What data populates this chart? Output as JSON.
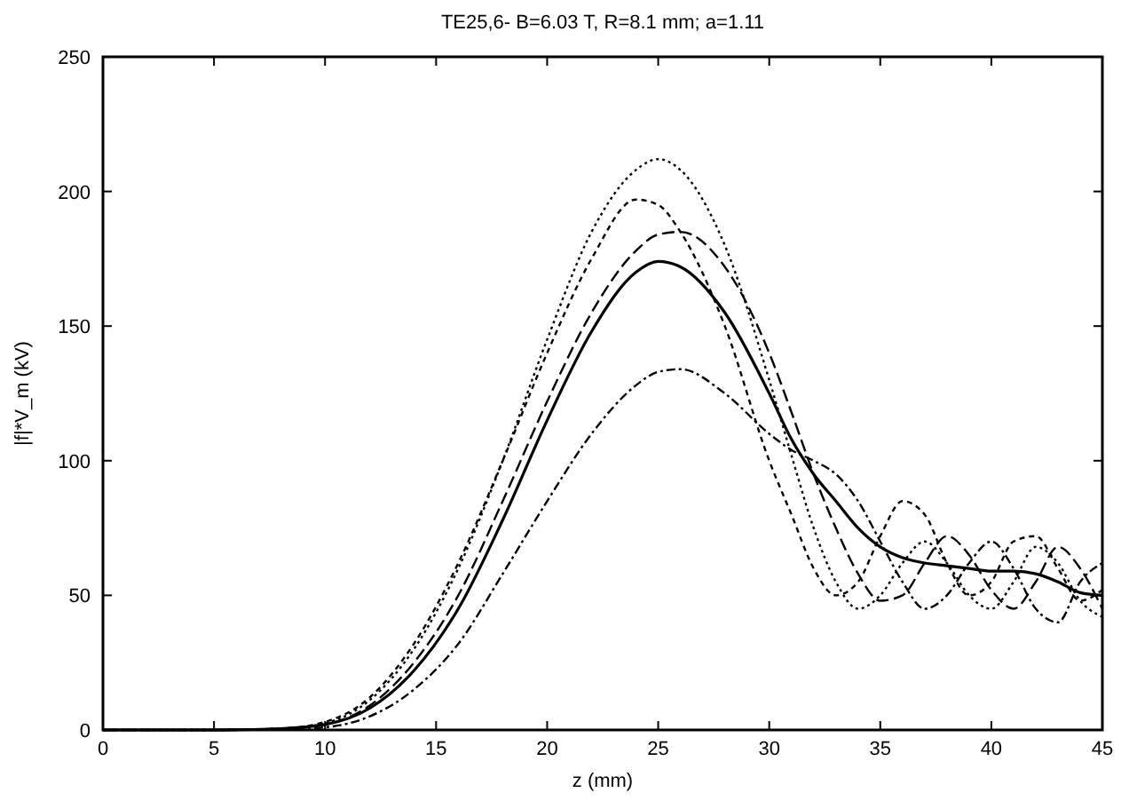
{
  "chart_data": {
    "type": "line",
    "title": "TE25,6- B=6.03 T, R=8.1 mm; a=1.11",
    "xlabel": "z (mm)",
    "ylabel": "|f|*V_m (kV)",
    "x": [
      0,
      5,
      8,
      10,
      12,
      14,
      16,
      18,
      20,
      22,
      24,
      25,
      26,
      28,
      30,
      31,
      32,
      33,
      34,
      35,
      36,
      37,
      38,
      39,
      40,
      41,
      42,
      43,
      44,
      45
    ],
    "xlim": [
      0,
      45
    ],
    "xticks": [
      0,
      5,
      10,
      15,
      20,
      25,
      30,
      35,
      40,
      45
    ],
    "ylim": [
      0,
      250
    ],
    "yticks": [
      0,
      50,
      100,
      150,
      200,
      250
    ],
    "grid": false,
    "series": [
      {
        "color": "#000000",
        "line_style": "solid",
        "values": [
          0,
          0,
          0.5,
          2,
          8,
          22,
          45,
          78,
          115,
          148,
          170,
          174,
          172,
          155,
          125,
          108,
          95,
          85,
          75,
          68,
          64,
          62,
          61,
          60,
          59,
          59,
          58,
          55,
          51,
          50
        ]
      },
      {
        "color": "#000000",
        "line_style": "dotted",
        "values": [
          0,
          0,
          0.5,
          2.5,
          11,
          30,
          60,
          100,
          145,
          185,
          208,
          212,
          208,
          180,
          130,
          102,
          75,
          55,
          45,
          50,
          62,
          70,
          62,
          50,
          45,
          55,
          68,
          62,
          48,
          42
        ]
      },
      {
        "color": "#000000",
        "line_style": "dashed",
        "values": [
          0,
          0,
          0.5,
          3,
          12,
          32,
          62,
          100,
          140,
          175,
          197,
          195,
          185,
          150,
          100,
          80,
          60,
          50,
          55,
          72,
          85,
          80,
          62,
          50,
          55,
          70,
          72,
          60,
          48,
          52
        ]
      },
      {
        "color": "#000000",
        "line_style": "dashed",
        "values": [
          0,
          0,
          0.3,
          2,
          9,
          25,
          50,
          85,
          122,
          155,
          178,
          184,
          185,
          172,
          140,
          118,
          95,
          75,
          58,
          48,
          50,
          62,
          72,
          65,
          52,
          45,
          55,
          68,
          60,
          45
        ]
      },
      {
        "color": "#000000",
        "line_style": "dotted",
        "values": [
          0,
          0,
          0.2,
          1,
          5,
          15,
          32,
          58,
          85,
          110,
          128,
          133,
          134,
          125,
          110,
          104,
          100,
          95,
          85,
          70,
          55,
          45,
          50,
          62,
          70,
          60,
          45,
          40,
          55,
          62
        ]
      }
    ]
  }
}
